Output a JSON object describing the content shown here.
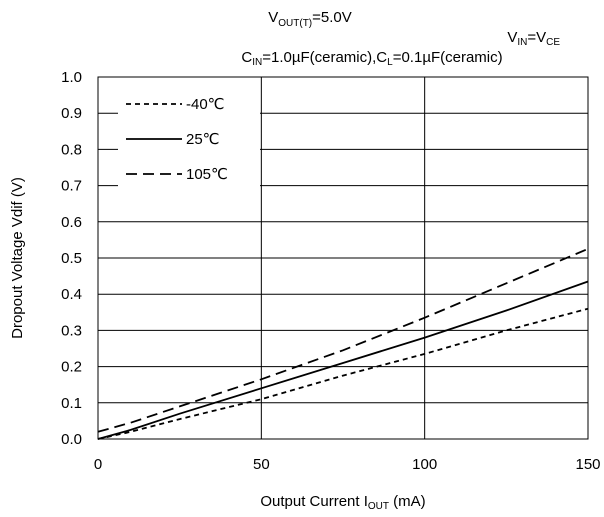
{
  "chart_data": {
    "type": "line",
    "title": {
      "line1": {
        "main": "V",
        "sub": "OUT(T)",
        "tail": "=5.0V"
      },
      "line2": {
        "a": "V",
        "a_sub": "IN",
        "mid": "=V",
        "b_sub": "CE"
      },
      "line3": {
        "c1": "C",
        "c1_sub": "IN",
        "c1_tail": "=1.0µF(ceramic),C",
        "c2_sub": "L",
        "c2_tail": "=0.1µF(ceramic)"
      }
    },
    "xlabel": {
      "main": "Output Current  I",
      "sub": "OUT",
      "tail": " (mA)"
    },
    "ylabel": "Dropout Voltage  Vdif (V)",
    "xlim": [
      0,
      150
    ],
    "ylim": [
      0,
      1.0
    ],
    "x_ticks": [
      "0",
      "50",
      "100",
      "150"
    ],
    "x_tick_values": [
      0,
      50,
      100,
      150
    ],
    "y_ticks": [
      "0.0",
      "0.1",
      "0.2",
      "0.3",
      "0.4",
      "0.5",
      "0.6",
      "0.7",
      "0.8",
      "0.9",
      "1.0"
    ],
    "y_tick_values": [
      0,
      0.1,
      0.2,
      0.3,
      0.4,
      0.5,
      0.6,
      0.7,
      0.8,
      0.9,
      1.0
    ],
    "grid": true,
    "legend_position": "top-left",
    "series": [
      {
        "name": "-40℃",
        "style": "short-dash",
        "x": [
          0,
          10,
          25,
          50,
          75,
          100,
          125,
          150
        ],
        "y": [
          0.0,
          0.02,
          0.055,
          0.11,
          0.175,
          0.235,
          0.3,
          0.36
        ]
      },
      {
        "name": "25℃",
        "style": "solid",
        "x": [
          0,
          10,
          25,
          50,
          75,
          100,
          125,
          150
        ],
        "y": [
          0.0,
          0.025,
          0.07,
          0.14,
          0.21,
          0.28,
          0.355,
          0.435
        ]
      },
      {
        "name": "105℃",
        "style": "long-dash",
        "x": [
          0,
          10,
          25,
          50,
          75,
          100,
          125,
          150
        ],
        "y": [
          0.02,
          0.045,
          0.09,
          0.165,
          0.245,
          0.335,
          0.43,
          0.525
        ]
      }
    ]
  }
}
